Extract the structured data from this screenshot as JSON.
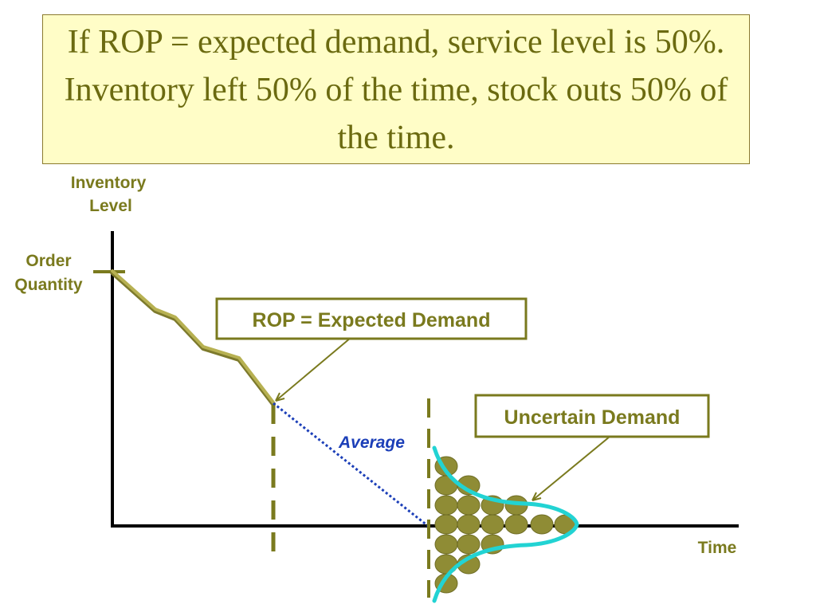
{
  "slide": {
    "title": "If ROP = expected demand, service level is 50%. Inventory left 50% of the time, stock outs 50% of the time."
  },
  "diagram": {
    "y_axis_label_line1": "Inventory",
    "y_axis_label_line2": "Level",
    "order_quantity_line1": "Order",
    "order_quantity_line2": "Quantity",
    "x_axis_label": "Time",
    "rop_callout": "ROP = Expected Demand",
    "uncertain_callout": "Uncertain Demand",
    "average_label": "Average"
  },
  "colors": {
    "title_fill": "#fffdc7",
    "title_text": "#6b6a10",
    "label_olive": "#7a7a1e",
    "inventory_line": "#a7a145",
    "callout_border": "#7a7a1e",
    "dot_fill": "#8f8c35",
    "curve": "#22d3d3",
    "average_line": "#1c3fb8",
    "axis": "#000000"
  }
}
